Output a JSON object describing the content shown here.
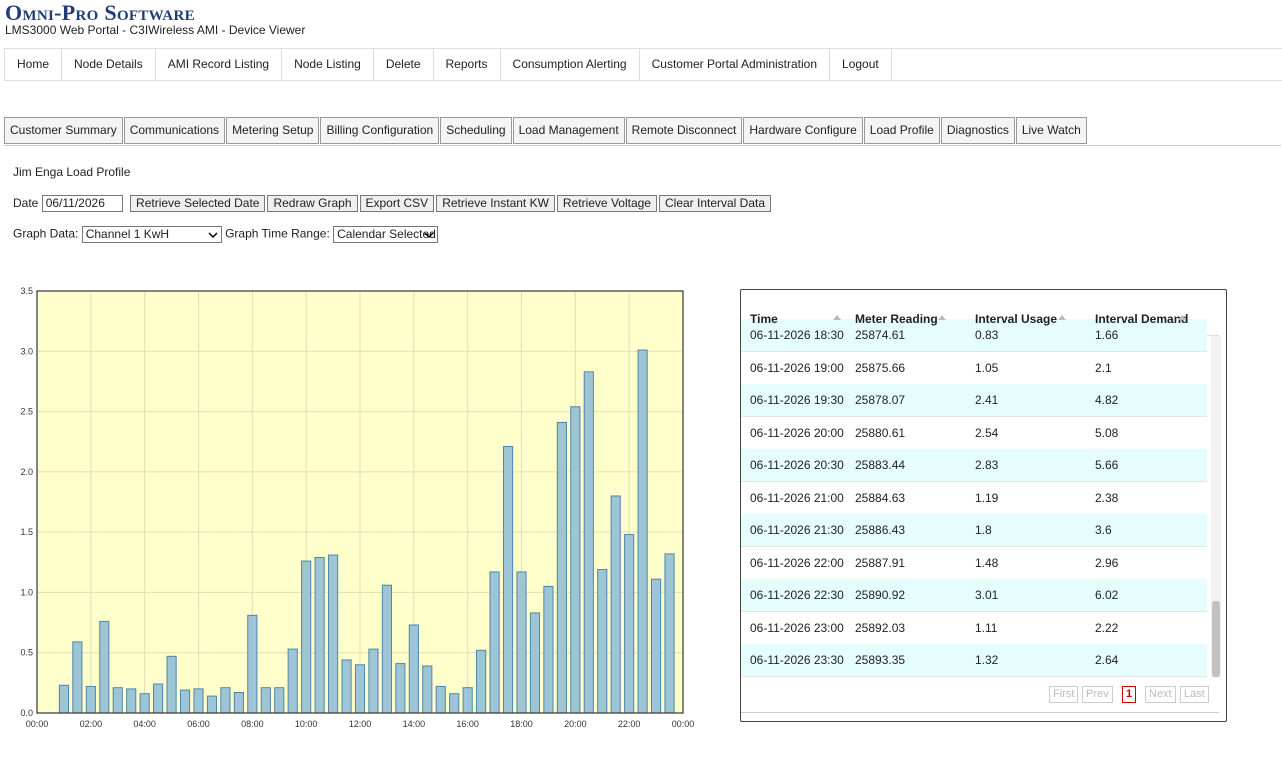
{
  "header": {
    "title": "Omni-Pro Software",
    "subtitle": "LMS3000 Web Portal - C3IWireless AMI - Device Viewer"
  },
  "nav": [
    "Home",
    "Node Details",
    "AMI Record Listing",
    "Node Listing",
    "Delete",
    "Reports",
    "Consumption Alerting",
    "Customer Portal Administration",
    "Logout"
  ],
  "tabs": [
    "Customer Summary",
    "Communications",
    "Metering Setup",
    "Billing Configuration",
    "Scheduling",
    "Load Management",
    "Remote Disconnect",
    "Hardware Configure",
    "Load Profile",
    "Diagnostics",
    "Live Watch"
  ],
  "page_title": "Jim Enga Load Profile",
  "controls": {
    "date_label": "Date",
    "date_value": "06/11/2026",
    "buttons": [
      "Retrieve Selected Date",
      "Redraw Graph",
      "Export CSV",
      "Retrieve Instant KW",
      "Retrieve Voltage",
      "Clear Interval Data"
    ],
    "graph_data_label": "Graph Data:",
    "graph_data_value": "Channel 1 KwH",
    "time_range_label": "Graph Time Range:",
    "time_range_value": "Calendar Selected"
  },
  "chart_data": {
    "type": "bar",
    "x": [
      1,
      1.5,
      2,
      2.5,
      3,
      3.5,
      4,
      4.5,
      5,
      5.5,
      6,
      6.5,
      7,
      7.5,
      8,
      8.5,
      9,
      9.5,
      10,
      10.5,
      11,
      11.5,
      12,
      12.5,
      13,
      13.5,
      14,
      14.5,
      15,
      15.5,
      16,
      16.5,
      17,
      17.5,
      18,
      18.5,
      19,
      19.5,
      20,
      20.5,
      21,
      21.5,
      22,
      22.5,
      23,
      23.5
    ],
    "values": [
      0.23,
      0.59,
      0.22,
      0.76,
      0.21,
      0.2,
      0.16,
      0.24,
      0.47,
      0.19,
      0.2,
      0.14,
      0.21,
      0.17,
      0.81,
      0.21,
      0.21,
      0.53,
      1.26,
      1.29,
      1.31,
      0.44,
      0.4,
      0.53,
      1.06,
      0.41,
      0.73,
      0.39,
      0.22,
      0.16,
      0.21,
      0.52,
      1.17,
      2.21,
      1.17,
      0.83,
      1.05,
      2.41,
      2.54,
      2.83,
      1.19,
      1.8,
      1.48,
      3.01,
      1.11,
      1.32
    ],
    "color": "#9ec5d6",
    "edge_color": "#4f86aa",
    "background": "#ffffcc",
    "xlim": [
      0,
      24
    ],
    "xticks": [
      {
        "value": 0,
        "label": "00:00"
      },
      {
        "value": 2,
        "label": "02:00"
      },
      {
        "value": 4,
        "label": "04:00"
      },
      {
        "value": 6,
        "label": "06:00"
      },
      {
        "value": 8,
        "label": "08:00"
      },
      {
        "value": 10,
        "label": "10:00"
      },
      {
        "value": 12,
        "label": "12:00"
      },
      {
        "value": 14,
        "label": "14:00"
      },
      {
        "value": 16,
        "label": "16:00"
      },
      {
        "value": 18,
        "label": "18:00"
      },
      {
        "value": 20,
        "label": "20:00"
      },
      {
        "value": 22,
        "label": "22:00"
      },
      {
        "value": 24,
        "label": "00:00"
      }
    ],
    "ylim": [
      0,
      3.5
    ],
    "yticks": [
      {
        "value": 0,
        "label": "0.0"
      },
      0.5,
      {
        "value": 1,
        "label": "1.0"
      },
      1.5,
      {
        "value": 2,
        "label": "2.0"
      },
      2.5,
      {
        "value": 3,
        "label": "3.0"
      },
      3.5
    ],
    "grid": true
  },
  "table": {
    "columns": [
      "Time",
      "Meter Reading",
      "Interval Usage",
      "Interval Demand"
    ],
    "rows": [
      [
        "06-11-2026 18:30",
        "25874.61",
        "0.83",
        "1.66"
      ],
      [
        "06-11-2026 19:00",
        "25875.66",
        "1.05",
        "2.1"
      ],
      [
        "06-11-2026 19:30",
        "25878.07",
        "2.41",
        "4.82"
      ],
      [
        "06-11-2026 20:00",
        "25880.61",
        "2.54",
        "5.08"
      ],
      [
        "06-11-2026 20:30",
        "25883.44",
        "2.83",
        "5.66"
      ],
      [
        "06-11-2026 21:00",
        "25884.63",
        "1.19",
        "2.38"
      ],
      [
        "06-11-2026 21:30",
        "25886.43",
        "1.8",
        "3.6"
      ],
      [
        "06-11-2026 22:00",
        "25887.91",
        "1.48",
        "2.96"
      ],
      [
        "06-11-2026 22:30",
        "25890.92",
        "3.01",
        "6.02"
      ],
      [
        "06-11-2026 23:00",
        "25892.03",
        "1.11",
        "2.22"
      ],
      [
        "06-11-2026 23:30",
        "25893.35",
        "1.32",
        "2.64"
      ]
    ]
  },
  "pagination": [
    "First",
    "Prev",
    "1",
    "Next",
    "Last"
  ]
}
